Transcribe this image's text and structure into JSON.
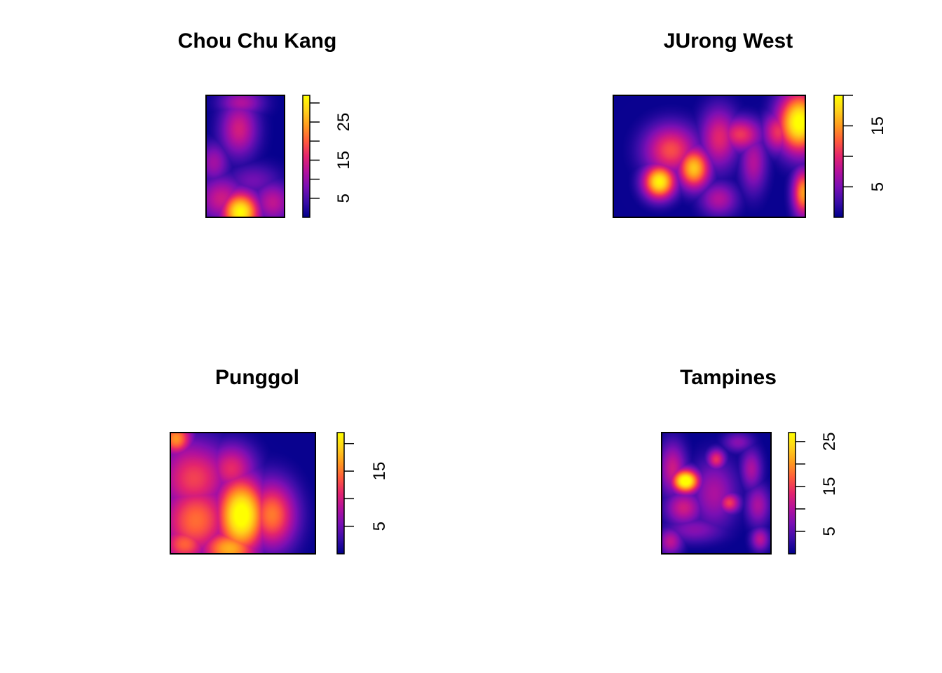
{
  "palette": [
    "#00008B",
    "#3B0DA8",
    "#7A0FB4",
    "#B3119C",
    "#E3246E",
    "#FF5A3C",
    "#FF9A1F",
    "#FFD11A",
    "#FFFF00"
  ],
  "chart_data": [
    {
      "type": "heatmap",
      "title": "Chou Chu Kang",
      "legend_ticks": [
        5,
        10,
        15,
        20,
        25,
        30
      ],
      "legend_labels": [
        "5",
        "15",
        "25"
      ],
      "zlim": [
        0,
        32
      ],
      "hotspots": [
        {
          "cx": 0.42,
          "cy": 0.28,
          "v": 13.5,
          "sx": 0.17,
          "sy": 0.16
        },
        {
          "cx": 0.45,
          "cy": 0.06,
          "v": 11,
          "sx": 0.2,
          "sy": 0.08
        },
        {
          "cx": 0.44,
          "cy": 0.96,
          "v": 29,
          "sx": 0.17,
          "sy": 0.12
        },
        {
          "cx": 0.2,
          "cy": 0.85,
          "v": 13,
          "sx": 0.22,
          "sy": 0.13
        },
        {
          "cx": 0.85,
          "cy": 0.88,
          "v": 12,
          "sx": 0.18,
          "sy": 0.12
        },
        {
          "cx": 0.1,
          "cy": 0.55,
          "v": 10,
          "sx": 0.14,
          "sy": 0.12
        },
        {
          "cx": 0.6,
          "cy": 0.7,
          "v": 7,
          "sx": 0.25,
          "sy": 0.1
        }
      ]
    },
    {
      "type": "heatmap",
      "title": "JUrong West",
      "legend_ticks": [
        5,
        10,
        15,
        20
      ],
      "legend_labels": [
        "5",
        "15"
      ],
      "zlim": [
        0,
        20
      ],
      "hotspots": [
        {
          "cx": 0.24,
          "cy": 0.71,
          "v": 18,
          "sx": 0.06,
          "sy": 0.1
        },
        {
          "cx": 0.42,
          "cy": 0.6,
          "v": 15.5,
          "sx": 0.06,
          "sy": 0.12
        },
        {
          "cx": 0.3,
          "cy": 0.45,
          "v": 11,
          "sx": 0.1,
          "sy": 0.15
        },
        {
          "cx": 0.55,
          "cy": 0.35,
          "v": 9,
          "sx": 0.07,
          "sy": 0.18
        },
        {
          "cx": 0.66,
          "cy": 0.32,
          "v": 10,
          "sx": 0.08,
          "sy": 0.1
        },
        {
          "cx": 0.73,
          "cy": 0.55,
          "v": 7,
          "sx": 0.05,
          "sy": 0.18
        },
        {
          "cx": 0.97,
          "cy": 0.22,
          "v": 19,
          "sx": 0.08,
          "sy": 0.18
        },
        {
          "cx": 0.86,
          "cy": 0.3,
          "v": 10,
          "sx": 0.06,
          "sy": 0.12
        },
        {
          "cx": 0.99,
          "cy": 0.8,
          "v": 14,
          "sx": 0.04,
          "sy": 0.14
        },
        {
          "cx": 0.55,
          "cy": 0.85,
          "v": 7,
          "sx": 0.07,
          "sy": 0.1
        }
      ]
    },
    {
      "type": "heatmap",
      "title": "Punggol",
      "legend_ticks": [
        5,
        10,
        15,
        20
      ],
      "legend_labels": [
        "5",
        "15"
      ],
      "zlim": [
        0,
        22
      ],
      "hotspots": [
        {
          "cx": 0.49,
          "cy": 0.68,
          "v": 21,
          "sx": 0.12,
          "sy": 0.22
        },
        {
          "cx": 0.41,
          "cy": 0.96,
          "v": 16,
          "sx": 0.14,
          "sy": 0.12
        },
        {
          "cx": 0.7,
          "cy": 0.68,
          "v": 14,
          "sx": 0.12,
          "sy": 0.2
        },
        {
          "cx": 0.18,
          "cy": 0.72,
          "v": 13,
          "sx": 0.18,
          "sy": 0.22
        },
        {
          "cx": 0.16,
          "cy": 0.38,
          "v": 11.5,
          "sx": 0.18,
          "sy": 0.22
        },
        {
          "cx": 0.04,
          "cy": 0.05,
          "v": 15,
          "sx": 0.08,
          "sy": 0.1
        },
        {
          "cx": 0.42,
          "cy": 0.3,
          "v": 10.5,
          "sx": 0.12,
          "sy": 0.15
        },
        {
          "cx": 0.1,
          "cy": 0.92,
          "v": 13,
          "sx": 0.12,
          "sy": 0.12
        }
      ]
    },
    {
      "type": "heatmap",
      "title": "Tampines",
      "legend_ticks": [
        5,
        10,
        15,
        20,
        25
      ],
      "legend_labels": [
        "5",
        "15",
        "25"
      ],
      "zlim": [
        0,
        27
      ],
      "hotspots": [
        {
          "cx": 0.22,
          "cy": 0.4,
          "v": 26.5,
          "sx": 0.09,
          "sy": 0.07
        },
        {
          "cx": 0.1,
          "cy": 0.3,
          "v": 11,
          "sx": 0.09,
          "sy": 0.16
        },
        {
          "cx": 0.2,
          "cy": 0.62,
          "v": 11,
          "sx": 0.12,
          "sy": 0.1
        },
        {
          "cx": 0.5,
          "cy": 0.22,
          "v": 13,
          "sx": 0.06,
          "sy": 0.06
        },
        {
          "cx": 0.62,
          "cy": 0.58,
          "v": 13.5,
          "sx": 0.07,
          "sy": 0.06
        },
        {
          "cx": 0.48,
          "cy": 0.5,
          "v": 9,
          "sx": 0.15,
          "sy": 0.2
        },
        {
          "cx": 0.82,
          "cy": 0.3,
          "v": 9,
          "sx": 0.07,
          "sy": 0.12
        },
        {
          "cx": 0.88,
          "cy": 0.6,
          "v": 9,
          "sx": 0.08,
          "sy": 0.12
        },
        {
          "cx": 0.9,
          "cy": 0.88,
          "v": 10,
          "sx": 0.06,
          "sy": 0.07
        },
        {
          "cx": 0.08,
          "cy": 0.9,
          "v": 10,
          "sx": 0.08,
          "sy": 0.08
        },
        {
          "cx": 0.3,
          "cy": 0.8,
          "v": 7,
          "sx": 0.2,
          "sy": 0.08
        },
        {
          "cx": 0.7,
          "cy": 0.08,
          "v": 7,
          "sx": 0.1,
          "sy": 0.06
        }
      ]
    }
  ]
}
